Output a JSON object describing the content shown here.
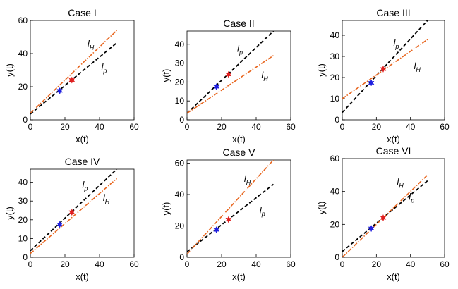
{
  "colors": {
    "lp": "#000000",
    "lH": "#e8661f",
    "blue_marker": "#1f1fe0",
    "red_marker": "#e01f1f",
    "axis": "#000000"
  },
  "chart_data": [
    {
      "type": "line",
      "title": "Case I",
      "xlabel": "x(t)",
      "ylabel": "y(t)",
      "xlim": [
        0,
        60
      ],
      "ylim": [
        0,
        60
      ],
      "xticks": [
        "0",
        "20",
        "40",
        "60"
      ],
      "yticks": [
        "0",
        "20",
        "40",
        "60"
      ],
      "series": [
        {
          "name": "l_p",
          "style": "dashed",
          "color": "#000000",
          "x": [
            0,
            50
          ],
          "y": [
            3.5,
            46.5
          ]
        },
        {
          "name": "l_H",
          "style": "dash-dot",
          "color": "#e8661f",
          "x": [
            0,
            50
          ],
          "y": [
            4,
            54
          ]
        }
      ],
      "markers": [
        {
          "x": 17,
          "y": 17.5,
          "color": "blue"
        },
        {
          "x": 24,
          "y": 24,
          "color": "red"
        }
      ],
      "annotations": [
        {
          "text": "l",
          "sub": "H",
          "x": 33,
          "y": 44
        },
        {
          "text": "l",
          "sub": "p",
          "x": 41,
          "y": 30
        }
      ]
    },
    {
      "type": "line",
      "title": "Case II",
      "xlabel": "x(t)",
      "ylabel": "y(t)",
      "xlim": [
        0,
        60
      ],
      "ylim": [
        0,
        47
      ],
      "xticks": [
        "0",
        "20",
        "40",
        "60"
      ],
      "yticks": [
        "0",
        "10",
        "20",
        "30",
        "40"
      ],
      "series": [
        {
          "name": "l_p",
          "style": "dashed",
          "color": "#000000",
          "x": [
            0,
            50
          ],
          "y": [
            3.5,
            47
          ]
        },
        {
          "name": "l_H",
          "style": "dash-dot",
          "color": "#e8661f",
          "x": [
            0,
            50
          ],
          "y": [
            3.5,
            34
          ]
        }
      ],
      "markers": [
        {
          "x": 17,
          "y": 17.5,
          "color": "blue"
        },
        {
          "x": 24,
          "y": 24,
          "color": "red"
        }
      ],
      "annotations": [
        {
          "text": "l",
          "sub": "p",
          "x": 29,
          "y": 36
        },
        {
          "text": "l",
          "sub": "H",
          "x": 43,
          "y": 22
        }
      ]
    },
    {
      "type": "line",
      "title": "Case III",
      "xlabel": "x(t)",
      "ylabel": "y(t)",
      "xlim": [
        0,
        60
      ],
      "ylim": [
        0,
        47
      ],
      "xticks": [
        "0",
        "20",
        "40",
        "60"
      ],
      "yticks": [
        "0",
        "10",
        "20",
        "30",
        "40"
      ],
      "series": [
        {
          "name": "l_p",
          "style": "dashed",
          "color": "#000000",
          "x": [
            0,
            50
          ],
          "y": [
            3.5,
            47
          ]
        },
        {
          "name": "l_H",
          "style": "dash-dot",
          "color": "#e8661f",
          "x": [
            0,
            50
          ],
          "y": [
            10,
            38
          ]
        }
      ],
      "markers": [
        {
          "x": 17,
          "y": 17.5,
          "color": "blue"
        },
        {
          "x": 24,
          "y": 24,
          "color": "red"
        }
      ],
      "annotations": [
        {
          "text": "l",
          "sub": "p",
          "x": 30,
          "y": 35
        },
        {
          "text": "l",
          "sub": "H",
          "x": 42,
          "y": 24
        }
      ]
    },
    {
      "type": "line",
      "title": "Case IV",
      "xlabel": "x(t)",
      "ylabel": "y(t)",
      "xlim": [
        0,
        60
      ],
      "ylim": [
        0,
        47
      ],
      "xticks": [
        "0",
        "20",
        "40",
        "60"
      ],
      "yticks": [
        "0",
        "10",
        "20",
        "30",
        "40"
      ],
      "series": [
        {
          "name": "l_p",
          "style": "dashed",
          "color": "#000000",
          "x": [
            0,
            50
          ],
          "y": [
            3.5,
            47
          ]
        },
        {
          "name": "l_H",
          "style": "dash-dot",
          "color": "#e8661f",
          "x": [
            0,
            50
          ],
          "y": [
            2,
            42
          ]
        }
      ],
      "markers": [
        {
          "x": 17,
          "y": 17.5,
          "color": "blue"
        },
        {
          "x": 24,
          "y": 24,
          "color": "red"
        }
      ],
      "annotations": [
        {
          "text": "l",
          "sub": "p",
          "x": 30,
          "y": 37
        },
        {
          "text": "l",
          "sub": "H",
          "x": 42,
          "y": 30
        }
      ]
    },
    {
      "type": "line",
      "title": "Case V",
      "xlabel": "x(t)",
      "ylabel": "y(t)",
      "xlim": [
        0,
        60
      ],
      "ylim": [
        0,
        62
      ],
      "xticks": [
        "0",
        "20",
        "40",
        "60"
      ],
      "yticks": [
        "0",
        "20",
        "40",
        "60"
      ],
      "series": [
        {
          "name": "l_p",
          "style": "dashed",
          "color": "#000000",
          "x": [
            0,
            50
          ],
          "y": [
            3.5,
            46.5
          ]
        },
        {
          "name": "l_H",
          "style": "dash-dot",
          "color": "#e8661f",
          "x": [
            0,
            50
          ],
          "y": [
            2,
            62
          ]
        }
      ],
      "markers": [
        {
          "x": 17,
          "y": 17.5,
          "color": "blue"
        },
        {
          "x": 24,
          "y": 24,
          "color": "red"
        }
      ],
      "annotations": [
        {
          "text": "l",
          "sub": "H",
          "x": 33,
          "y": 48
        },
        {
          "text": "l",
          "sub": "p",
          "x": 42,
          "y": 28
        }
      ]
    },
    {
      "type": "line",
      "title": "Case VI",
      "xlabel": "x(t)",
      "ylabel": "y(t)",
      "xlim": [
        0,
        60
      ],
      "ylim": [
        0,
        60
      ],
      "xticks": [
        "0",
        "20",
        "40",
        "60"
      ],
      "yticks": [
        "0",
        "20",
        "40",
        "60"
      ],
      "series": [
        {
          "name": "l_p",
          "style": "dashed",
          "color": "#000000",
          "x": [
            0,
            50
          ],
          "y": [
            3.5,
            46.5
          ]
        },
        {
          "name": "l_H",
          "style": "dash-dot",
          "color": "#e8661f",
          "x": [
            0,
            50
          ],
          "y": [
            0,
            50
          ]
        }
      ],
      "markers": [
        {
          "x": 17,
          "y": 17.5,
          "color": "blue"
        },
        {
          "x": 24,
          "y": 24,
          "color": "red"
        }
      ],
      "annotations": [
        {
          "text": "l",
          "sub": "H",
          "x": 32,
          "y": 44
        },
        {
          "text": "l",
          "sub": "p",
          "x": 39,
          "y": 35
        }
      ]
    }
  ]
}
